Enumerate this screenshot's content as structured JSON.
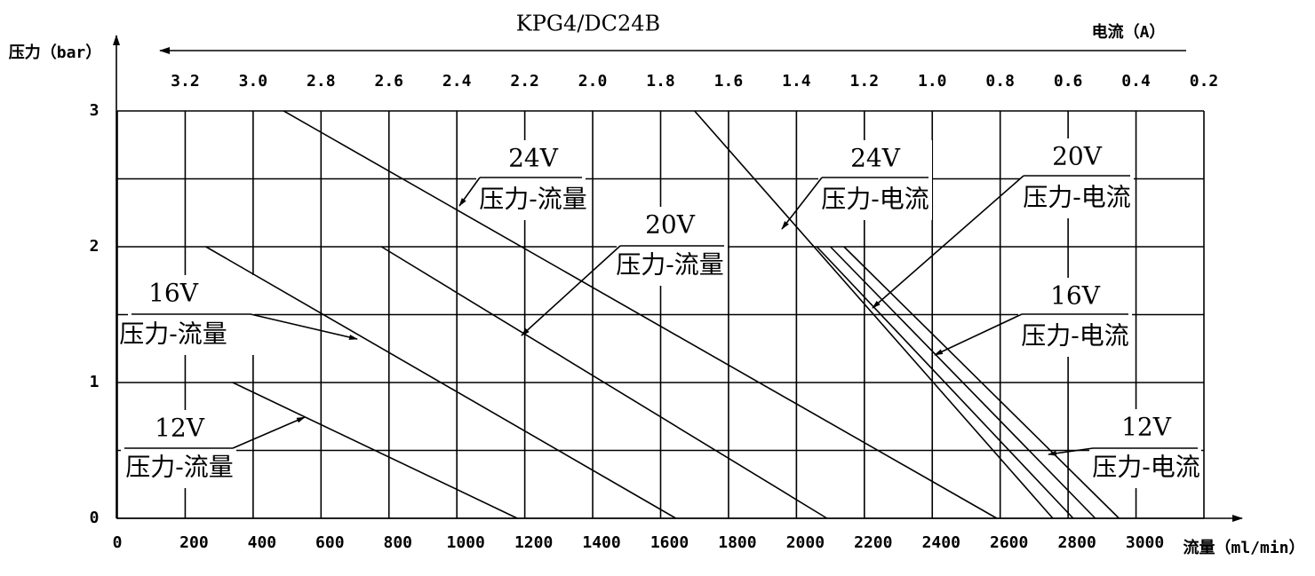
{
  "chart_data": {
    "type": "line",
    "title": "KPG4/DC24B",
    "y_label": "压力（bar）",
    "x_label": "流量（ml/min）",
    "x2_label": "电流（A）",
    "xlim": [
      0,
      3200
    ],
    "xticks": [
      0,
      200,
      400,
      600,
      800,
      1000,
      1200,
      1400,
      1600,
      1800,
      2000,
      2200,
      2400,
      2600,
      2800,
      3000
    ],
    "ylim": [
      0,
      3
    ],
    "yticks": [
      0,
      1,
      2,
      3
    ],
    "ygrid": [
      0,
      0.5,
      1,
      1.5,
      2,
      2.5,
      3
    ],
    "x2lim": [
      3.4,
      0.2
    ],
    "x2ticks": [
      3.2,
      {
        "value": 3,
        "label": "3.0"
      },
      2.8,
      2.6,
      2.4,
      2.2,
      {
        "value": 2,
        "label": "2.0"
      },
      1.8,
      1.6,
      1.4,
      1.2,
      {
        "value": 1,
        "label": "1.0"
      },
      0.8,
      0.6,
      0.4,
      0.2
    ],
    "grid": true,
    "color": "#000000",
    "series": [
      {
        "name": "24V",
        "label": "压力-流量",
        "x": [
          490,
          2590
        ],
        "values": [
          3,
          0
        ]
      },
      {
        "name": "20V",
        "label": "压力-流量",
        "x": [
          778,
          2090
        ],
        "values": [
          2,
          0
        ]
      },
      {
        "name": "16V",
        "label": "压力-流量",
        "x": [
          261,
          1645
        ],
        "values": [
          2,
          0
        ]
      },
      {
        "name": "12V",
        "label": "压力-流量",
        "x": [
          340,
          1178
        ],
        "values": [
          1,
          0
        ]
      },
      {
        "name": "24V",
        "label": "压力-电流",
        "axis": "x2",
        "x": [
          1.7,
          0.645
        ],
        "values": [
          3,
          0
        ]
      },
      {
        "name": "20V",
        "label": "压力-电流",
        "axis": "x2",
        "x": [
          1.34,
          0.585
        ],
        "values": [
          2,
          0
        ]
      },
      {
        "name": "16V",
        "label": "压力-电流",
        "axis": "x2",
        "x": [
          1.3,
          0.52
        ],
        "values": [
          2,
          0
        ]
      },
      {
        "name": "12V",
        "label": "压力-电流",
        "axis": "x2",
        "x": [
          1.26,
          0.45
        ],
        "values": [
          2,
          0
        ]
      }
    ]
  }
}
